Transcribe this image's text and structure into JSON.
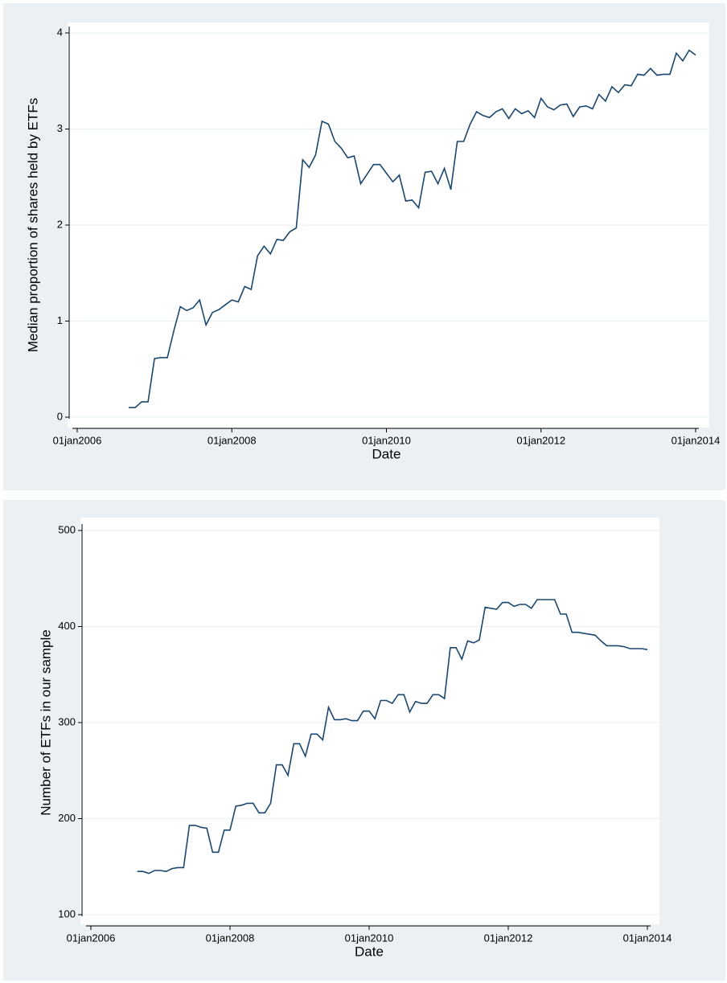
{
  "chart_data": [
    {
      "type": "line",
      "xlabel": "Date",
      "ylabel": "Median proportion of shares held by ETFs",
      "color": "#1a476f",
      "grid": true,
      "xlim": [
        "2006-01-01",
        "2014-01-01"
      ],
      "xticks": [
        {
          "value": "2006-01-01",
          "label": "01jan2006"
        },
        {
          "value": "2008-01-01",
          "label": "01jan2008"
        },
        {
          "value": "2010-01-01",
          "label": "01jan2010"
        },
        {
          "value": "2012-01-01",
          "label": "01jan2012"
        },
        {
          "value": "2014-01-01",
          "label": "01jan2014"
        }
      ],
      "ylim": [
        0,
        4
      ],
      "yticks": [
        0,
        1,
        2,
        3,
        4
      ],
      "x": [
        "2006-09",
        "2006-10",
        "2006-11",
        "2006-12",
        "2007-01",
        "2007-02",
        "2007-03",
        "2007-04",
        "2007-05",
        "2007-06",
        "2007-07",
        "2007-08",
        "2007-09",
        "2007-10",
        "2007-11",
        "2007-12",
        "2008-01",
        "2008-02",
        "2008-03",
        "2008-04",
        "2008-05",
        "2008-06",
        "2008-07",
        "2008-08",
        "2008-09",
        "2008-10",
        "2008-11",
        "2008-12",
        "2009-01",
        "2009-02",
        "2009-03",
        "2009-04",
        "2009-05",
        "2009-06",
        "2009-07",
        "2009-08",
        "2009-09",
        "2009-10",
        "2009-11",
        "2009-12",
        "2010-01",
        "2010-02",
        "2010-03",
        "2010-04",
        "2010-05",
        "2010-06",
        "2010-07",
        "2010-08",
        "2010-09",
        "2010-10",
        "2010-11",
        "2010-12",
        "2011-01",
        "2011-02",
        "2011-03",
        "2011-04",
        "2011-05",
        "2011-06",
        "2011-07",
        "2011-08",
        "2011-09",
        "2011-10",
        "2011-11",
        "2011-12",
        "2012-01",
        "2012-02",
        "2012-03",
        "2012-04",
        "2012-05",
        "2012-06",
        "2012-07",
        "2012-08",
        "2012-09",
        "2012-10",
        "2012-11",
        "2012-12",
        "2013-01",
        "2013-02",
        "2013-03",
        "2013-04",
        "2013-05",
        "2013-06",
        "2013-07",
        "2013-08",
        "2013-09",
        "2013-10",
        "2013-11",
        "2013-12",
        "2014-01"
      ],
      "values": [
        0.1,
        0.1,
        0.16,
        0.16,
        0.61,
        0.62,
        0.62,
        0.9,
        1.15,
        1.11,
        1.14,
        1.22,
        0.96,
        1.09,
        1.12,
        1.17,
        1.22,
        1.2,
        1.36,
        1.33,
        1.68,
        1.78,
        1.7,
        1.85,
        1.84,
        1.93,
        1.97,
        2.68,
        2.6,
        2.73,
        3.08,
        3.05,
        2.87,
        2.8,
        2.7,
        2.72,
        2.43,
        2.53,
        2.63,
        2.63,
        2.54,
        2.45,
        2.52,
        2.25,
        2.26,
        2.18,
        2.55,
        2.56,
        2.43,
        2.59,
        2.37,
        2.87,
        2.87,
        3.05,
        3.18,
        3.14,
        3.12,
        3.18,
        3.21,
        3.11,
        3.21,
        3.16,
        3.19,
        3.12,
        3.32,
        3.23,
        3.2,
        3.25,
        3.26,
        3.13,
        3.23,
        3.24,
        3.21,
        3.36,
        3.29,
        3.44,
        3.38,
        3.46,
        3.45,
        3.57,
        3.56,
        3.63,
        3.56,
        3.57,
        3.57,
        3.79,
        3.71,
        3.82,
        3.77
      ]
    },
    {
      "type": "line",
      "xlabel": "Date",
      "ylabel": "Number of ETFs in our sample",
      "color": "#1a476f",
      "grid": true,
      "xlim": [
        "2006-01-01",
        "2014-01-01"
      ],
      "xticks": [
        {
          "value": "2006-01-01",
          "label": "01jan2006"
        },
        {
          "value": "2008-01-01",
          "label": "01jan2008"
        },
        {
          "value": "2010-01-01",
          "label": "01jan2010"
        },
        {
          "value": "2012-01-01",
          "label": "01jan2012"
        },
        {
          "value": "2014-01-01",
          "label": "01jan2014"
        }
      ],
      "ylim": [
        100,
        500
      ],
      "yticks": [
        100,
        200,
        300,
        400,
        500
      ],
      "x": [
        "2006-09",
        "2006-10",
        "2006-11",
        "2006-12",
        "2007-01",
        "2007-02",
        "2007-03",
        "2007-04",
        "2007-05",
        "2007-06",
        "2007-07",
        "2007-08",
        "2007-09",
        "2007-10",
        "2007-11",
        "2007-12",
        "2008-01",
        "2008-02",
        "2008-03",
        "2008-04",
        "2008-05",
        "2008-06",
        "2008-07",
        "2008-08",
        "2008-09",
        "2008-10",
        "2008-11",
        "2008-12",
        "2009-01",
        "2009-02",
        "2009-03",
        "2009-04",
        "2009-05",
        "2009-06",
        "2009-07",
        "2009-08",
        "2009-09",
        "2009-10",
        "2009-11",
        "2009-12",
        "2010-01",
        "2010-02",
        "2010-03",
        "2010-04",
        "2010-05",
        "2010-06",
        "2010-07",
        "2010-08",
        "2010-09",
        "2010-10",
        "2010-11",
        "2010-12",
        "2011-01",
        "2011-02",
        "2011-03",
        "2011-04",
        "2011-05",
        "2011-06",
        "2011-07",
        "2011-08",
        "2011-09",
        "2011-10",
        "2011-11",
        "2011-12",
        "2012-01",
        "2012-02",
        "2012-03",
        "2012-04",
        "2012-05",
        "2012-06",
        "2012-07",
        "2012-08",
        "2012-09",
        "2012-10",
        "2012-11",
        "2012-12",
        "2013-01",
        "2013-02",
        "2013-03",
        "2013-04",
        "2013-05",
        "2013-06",
        "2013-07",
        "2013-08",
        "2013-09",
        "2013-10",
        "2013-11",
        "2013-12",
        "2014-01"
      ],
      "values": [
        145,
        145,
        143,
        146,
        146,
        145,
        148,
        149,
        149,
        193,
        193,
        191,
        190,
        165,
        165,
        188,
        188,
        213,
        214,
        216,
        216,
        206,
        206,
        216,
        256,
        256,
        245,
        278,
        278,
        265,
        288,
        288,
        282,
        316,
        303,
        303,
        304,
        302,
        302,
        312,
        312,
        304,
        323,
        323,
        320,
        329,
        329,
        311,
        322,
        320,
        320,
        329,
        329,
        325,
        378,
        378,
        366,
        385,
        383,
        386,
        420,
        419,
        418,
        425,
        425,
        421,
        423,
        423,
        419,
        428,
        428,
        428,
        428,
        413,
        413,
        394,
        394,
        393,
        392,
        391,
        385,
        380,
        380,
        380,
        379,
        377,
        377,
        377,
        376
      ]
    }
  ]
}
